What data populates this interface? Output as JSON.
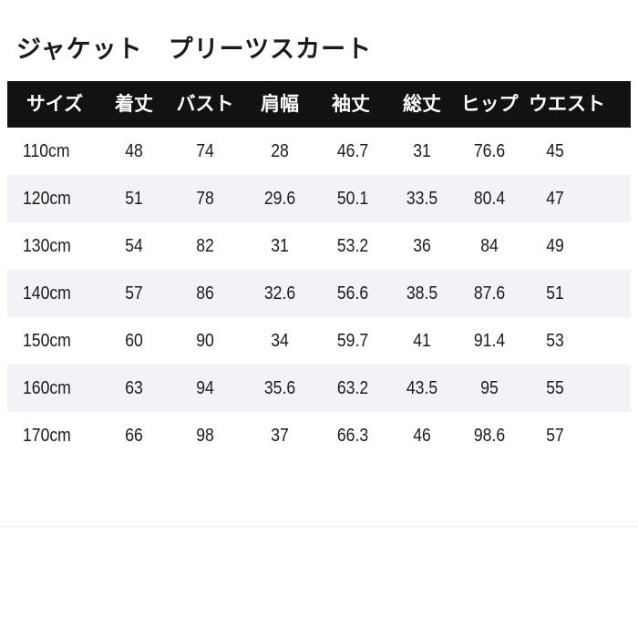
{
  "title": "ジャケット　プリーツスカート",
  "headers": [
    "サイズ",
    "着丈",
    "バスト",
    "肩幅",
    "袖丈",
    "総丈",
    "ヒップ",
    "ウエスト"
  ],
  "rows": [
    [
      "110cm",
      "48",
      "74",
      "28",
      "46.7",
      "31",
      "76.6",
      "45"
    ],
    [
      "120cm",
      "51",
      "78",
      "29.6",
      "50.1",
      "33.5",
      "80.4",
      "47"
    ],
    [
      "130cm",
      "54",
      "82",
      "31",
      "53.2",
      "36",
      "84",
      "49"
    ],
    [
      "140cm",
      "57",
      "86",
      "32.6",
      "56.6",
      "38.5",
      "87.6",
      "51"
    ],
    [
      "150cm",
      "60",
      "90",
      "34",
      "59.7",
      "41",
      "91.4",
      "53"
    ],
    [
      "160cm",
      "63",
      "94",
      "35.6",
      "63.2",
      "43.5",
      "95",
      "55"
    ],
    [
      "170cm",
      "66",
      "98",
      "37",
      "66.3",
      "46",
      "98.6",
      "57"
    ]
  ],
  "colors": {
    "header_bg": "#121212",
    "header_text": "#ffffff",
    "alt_row": "#f2f3f7"
  }
}
